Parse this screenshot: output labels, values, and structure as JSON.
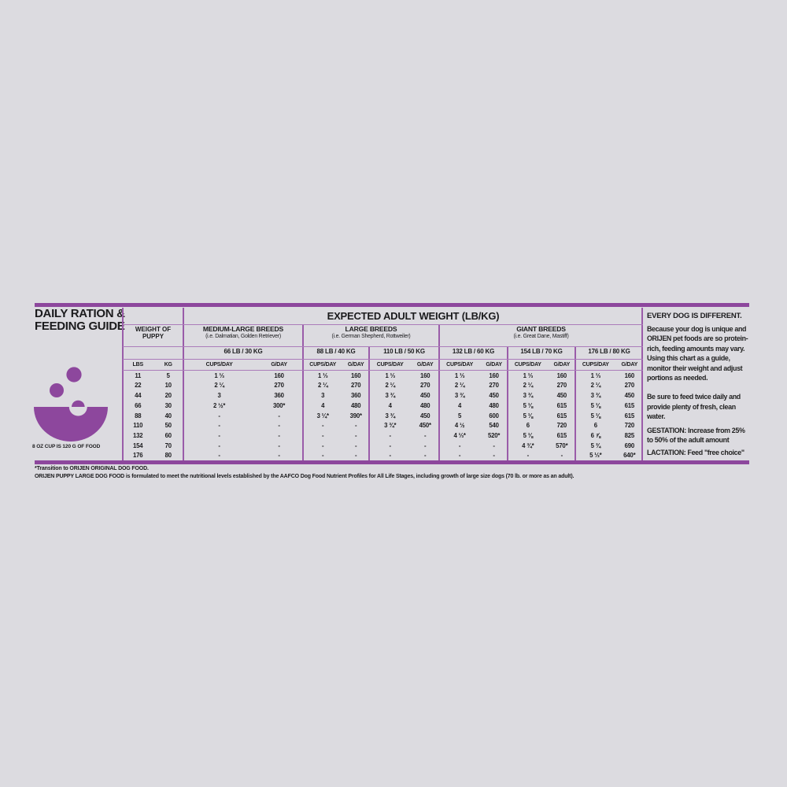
{
  "colors": {
    "background": "#dcdbe0",
    "accent_purple": "#8d479d",
    "line_purple": "#9a5ca9",
    "thin_line_purple": "#ab7cba",
    "text": "#1b1b1d"
  },
  "header": {
    "title_line1": "DAILY RATION &",
    "title_line2": "FEEDING GUIDE"
  },
  "cup_note": "8 OZ CUP IS 120 G OF FOOD",
  "table": {
    "main_header": "EXPECTED ADULT WEIGHT (LB/KG)",
    "puppy_col": {
      "title_line1": "WEIGHT OF",
      "title_line2": "PUPPY",
      "lbs_label": "LBS",
      "kg_label": "KG"
    },
    "cups_label": "CUPS/DAY",
    "gday_label": "G/DAY",
    "groups": [
      {
        "name": "MEDIUM-LARGE BREEDS",
        "examples": "(i.e. Dalmatian, Golden Retriever)",
        "weights": [
          "66 LB / 30 KG"
        ]
      },
      {
        "name": "LARGE BREEDS",
        "examples": "(i.e. German Shepherd, Rottweiler)",
        "weights": [
          "88 LB / 40 KG",
          "110 LB / 50 KG"
        ]
      },
      {
        "name": "GIANT BREEDS",
        "examples": "(i.e. Great Dane, Mastiff)",
        "weights": [
          "132 LB / 60 KG",
          "154 LB / 70 KG",
          "176 LB / 80 KG"
        ]
      }
    ],
    "rows": [
      {
        "lbs": "11",
        "kg": "5",
        "cells": [
          [
            "1 ⅓",
            "160"
          ],
          [
            "1 ⅓",
            "160"
          ],
          [
            "1 ⅓",
            "160"
          ],
          [
            "1 ⅓",
            "160"
          ],
          [
            "1 ⅓",
            "160"
          ],
          [
            "1 ⅓",
            "160"
          ]
        ]
      },
      {
        "lbs": "22",
        "kg": "10",
        "cells": [
          [
            "2 ¼",
            "270"
          ],
          [
            "2 ¼",
            "270"
          ],
          [
            "2 ¼",
            "270"
          ],
          [
            "2 ¼",
            "270"
          ],
          [
            "2 ¼",
            "270"
          ],
          [
            "2 ¼",
            "270"
          ]
        ]
      },
      {
        "lbs": "44",
        "kg": "20",
        "cells": [
          [
            "3",
            "360"
          ],
          [
            "3",
            "360"
          ],
          [
            "3 ¾",
            "450"
          ],
          [
            "3 ¾",
            "450"
          ],
          [
            "3 ¾",
            "450"
          ],
          [
            "3 ¾",
            "450"
          ]
        ]
      },
      {
        "lbs": "66",
        "kg": "30",
        "cells": [
          [
            "2 ½*",
            "300*"
          ],
          [
            "4",
            "480"
          ],
          [
            "4",
            "480"
          ],
          [
            "4",
            "480"
          ],
          [
            "5 ⅛",
            "615"
          ],
          [
            "5 ⅛",
            "615"
          ]
        ]
      },
      {
        "lbs": "88",
        "kg": "40",
        "cells": [
          [
            "-",
            "-"
          ],
          [
            "3 ¼*",
            "390*"
          ],
          [
            "3 ¾",
            "450"
          ],
          [
            "5",
            "600"
          ],
          [
            "5 ⅛",
            "615"
          ],
          [
            "5 ⅛",
            "615"
          ]
        ]
      },
      {
        "lbs": "110",
        "kg": "50",
        "cells": [
          [
            "-",
            "-"
          ],
          [
            "-",
            "-"
          ],
          [
            "3 ¾*",
            "450*"
          ],
          [
            "4 ½",
            "540"
          ],
          [
            "6",
            "720"
          ],
          [
            "6",
            "720"
          ]
        ]
      },
      {
        "lbs": "132",
        "kg": "60",
        "cells": [
          [
            "-",
            "-"
          ],
          [
            "-",
            "-"
          ],
          [
            "-",
            "-"
          ],
          [
            "4 ⅓*",
            "520*"
          ],
          [
            "5 ⅛",
            "615"
          ],
          [
            "6 ⅞",
            "825"
          ]
        ]
      },
      {
        "lbs": "154",
        "kg": "70",
        "cells": [
          [
            "-",
            "-"
          ],
          [
            "-",
            "-"
          ],
          [
            "-",
            "-"
          ],
          [
            "-",
            "-"
          ],
          [
            "4 ¾*",
            "570*"
          ],
          [
            "5 ¾",
            "690"
          ]
        ]
      },
      {
        "lbs": "176",
        "kg": "80",
        "cells": [
          [
            "-",
            "-"
          ],
          [
            "-",
            "-"
          ],
          [
            "-",
            "-"
          ],
          [
            "-",
            "-"
          ],
          [
            "-",
            "-"
          ],
          [
            "5 ⅓*",
            "640*"
          ]
        ]
      }
    ]
  },
  "notes": {
    "heading": "EVERY DOG IS DIFFERENT.",
    "para1": "Because your dog is unique and ORIJEN pet foods are so protein-rich, feeding amounts may vary. Using this chart as a guide, monitor their weight and adjust portions as needed.",
    "para2": "Be sure to feed twice daily and provide plenty of fresh, clean water.",
    "para3": "GESTATION: Increase from 25% to 50% of the adult amount",
    "para4": "LACTATION: Feed \"free choice\""
  },
  "footnotes": {
    "line1": "*Transition to ORIJEN ORIGINAL DOG FOOD.",
    "line2": "ORIJEN PUPPY LARGE DOG FOOD is formulated to meet the nutritional levels established by the AAFCO Dog Food Nutrient Profiles for All Life Stages, including growth of large size dogs (70 lb. or more as an adult)."
  }
}
